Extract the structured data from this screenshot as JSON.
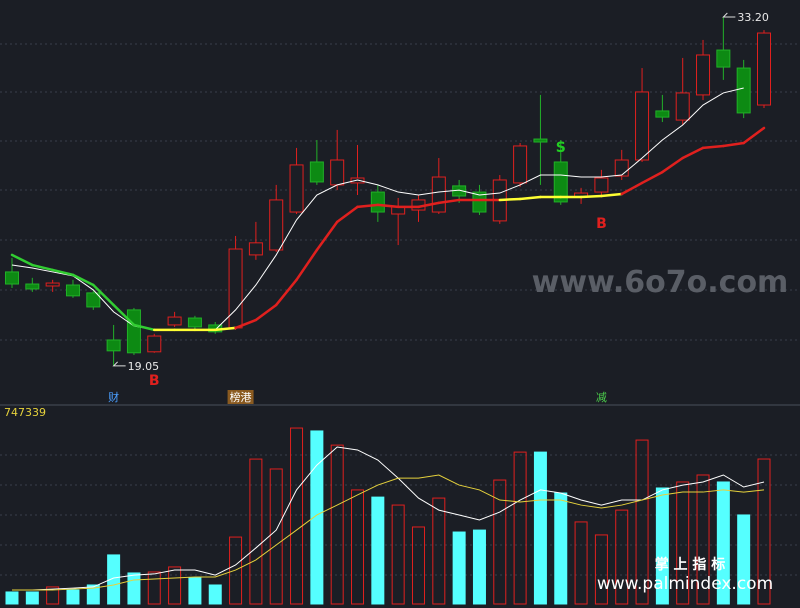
{
  "chart_data": {
    "type": "candlestick",
    "ylim": [
      17.99,
      33.89
    ],
    "up_color": "#e0201e",
    "down_color": "#0d8a13",
    "open": [
      22.86,
      22.37,
      22.29,
      22.33,
      22.01,
      20.1,
      21.32,
      19.62,
      20.71,
      20.99,
      20.71,
      20.59,
      23.55,
      23.75,
      25.29,
      27.32,
      26.39,
      26.47,
      26.1,
      25.21,
      25.37,
      25.29,
      26.35,
      26.1,
      24.93,
      26.47,
      28.25,
      27.32,
      25.9,
      26.1,
      26.75,
      27.4,
      29.39,
      29.02,
      30.04,
      31.86,
      31.13,
      29.63
    ],
    "high": [
      23.43,
      22.62,
      22.54,
      22.54,
      22.13,
      20.71,
      21.4,
      20.35,
      21.24,
      21.08,
      20.83,
      24.32,
      24.89,
      26.39,
      27.89,
      28.21,
      28.62,
      28.01,
      26.39,
      25.86,
      25.98,
      27.48,
      26.59,
      26.39,
      26.79,
      28.09,
      30.04,
      28.21,
      26.27,
      27.0,
      27.81,
      31.13,
      30.04,
      31.54,
      32.27,
      33.2,
      31.46,
      32.67
    ],
    "low": [
      22.21,
      22.05,
      22.05,
      21.81,
      21.32,
      19.05,
      19.49,
      19.58,
      20.63,
      20.51,
      20.35,
      20.51,
      23.35,
      23.67,
      25.21,
      26.39,
      26.18,
      25.98,
      24.89,
      23.95,
      24.89,
      25.21,
      25.66,
      25.17,
      24.81,
      26.31,
      26.39,
      25.58,
      25.62,
      25.94,
      26.59,
      27.32,
      28.94,
      28.82,
      29.83,
      30.65,
      29.1,
      29.51
    ],
    "close": [
      22.37,
      22.17,
      22.41,
      21.89,
      21.44,
      19.66,
      19.58,
      20.26,
      21.03,
      20.63,
      20.43,
      23.79,
      24.04,
      25.78,
      27.2,
      26.51,
      27.4,
      26.67,
      25.29,
      25.5,
      25.78,
      26.71,
      25.94,
      25.29,
      26.59,
      27.97,
      28.13,
      25.7,
      26.06,
      26.67,
      27.4,
      30.16,
      29.14,
      30.12,
      31.66,
      31.17,
      29.31,
      32.55
    ],
    "ma_lines": [
      {
        "color": "#ffffff",
        "values": [
          23.14,
          23.02,
          22.86,
          22.7,
          22.13,
          21.24,
          20.67,
          20.51,
          20.51,
          20.51,
          20.51,
          21.32,
          22.33,
          23.55,
          24.97,
          25.98,
          26.39,
          26.59,
          26.39,
          26.1,
          25.98,
          26.1,
          26.18,
          25.98,
          26.06,
          26.39,
          26.79,
          26.79,
          26.71,
          26.71,
          26.79,
          27.48,
          28.21,
          28.82,
          29.63,
          30.12,
          30.32,
          null
        ]
      },
      {
        "colors": [
          "#32cd32",
          "#32cd32",
          "#32cd32",
          "#32cd32",
          "#32cd32",
          "#32cd32",
          "#32cd32",
          "#32cd32",
          "#ffff33",
          "#ffff33",
          "#ffff33",
          "#ffff33",
          "#e0201e",
          "#e0201e",
          "#e0201e",
          "#e0201e",
          "#e0201e",
          "#e0201e",
          "#e0201e",
          "#e0201e",
          "#e0201e",
          "#e0201e",
          "#e0201e",
          "#e0201e",
          "#e0201e",
          "#ffff33",
          "#ffff33",
          "#ffff33",
          "#ffff33",
          "#ffff33",
          "#ffff33",
          "#e0201e",
          "#e0201e",
          "#e0201e",
          "#e0201e",
          "#e0201e",
          "#e0201e",
          "#e0201e"
        ],
        "values": [
          23.55,
          23.14,
          22.94,
          22.74,
          22.33,
          21.52,
          20.71,
          20.51,
          20.51,
          20.51,
          20.51,
          20.59,
          20.91,
          21.52,
          22.54,
          23.75,
          24.89,
          25.5,
          25.58,
          25.5,
          25.5,
          25.66,
          25.78,
          25.78,
          25.78,
          25.82,
          25.9,
          25.9,
          25.9,
          25.94,
          26.02,
          26.47,
          26.91,
          27.48,
          27.89,
          27.97,
          28.09,
          28.7
        ]
      }
    ],
    "extreme_labels": [
      {
        "text": "33.20",
        "value": 33.2,
        "side": "high"
      },
      {
        "text": "19.05",
        "value": 19.05,
        "side": "low"
      }
    ],
    "signal_colors": {
      "B": "#e0201e",
      "S": "#22cc22"
    },
    "signals": [
      null,
      null,
      null,
      null,
      null,
      null,
      null,
      "B",
      null,
      null,
      null,
      null,
      null,
      null,
      null,
      null,
      null,
      null,
      null,
      null,
      null,
      null,
      null,
      null,
      null,
      null,
      null,
      "S",
      null,
      "B",
      null,
      null,
      null,
      null,
      null,
      null,
      null,
      null
    ],
    "events": [
      null,
      null,
      null,
      null,
      null,
      {
        "text": "财",
        "color": "#4a9eff"
      },
      null,
      null,
      null,
      null,
      null,
      {
        "text": "榜港",
        "color": "#ffffff",
        "background": "#8a5a20"
      },
      null,
      null,
      null,
      null,
      null,
      null,
      null,
      null,
      null,
      null,
      null,
      null,
      null,
      null,
      null,
      null,
      null,
      {
        "text": "减",
        "color": "#4ccf4c"
      },
      null,
      null,
      null,
      null,
      null,
      null,
      null,
      null
    ],
    "volume": {
      "ylim": [
        0,
        1000000
      ],
      "up_color": "#e0201e",
      "down_color": "#55ffff",
      "label_color": "#e6d23c",
      "values": [
        62000,
        62000,
        88000,
        72000,
        98000,
        253000,
        160000,
        165000,
        191000,
        134000,
        98000,
        345000,
        747000,
        696000,
        907000,
        892000,
        819000,
        588000,
        551000,
        510000,
        397000,
        546000,
        371000,
        381000,
        639000,
        783000,
        783000,
        572000,
        423000,
        356000,
        484000,
        845000,
        598000,
        629000,
        665000,
        629000,
        459000,
        747339
      ],
      "ma_lines": [
        {
          "color": "#ffffff",
          "values": [
            72000,
            72000,
            77000,
            82000,
            88000,
            134000,
            149000,
            155000,
            175000,
            175000,
            149000,
            201000,
            289000,
            381000,
            588000,
            716000,
            809000,
            794000,
            742000,
            649000,
            546000,
            484000,
            459000,
            433000,
            474000,
            536000,
            588000,
            572000,
            536000,
            510000,
            536000,
            536000,
            588000,
            613000,
            629000,
            665000,
            603000,
            629000
          ]
        },
        {
          "color": "#e6d23c",
          "values": [
            72000,
            72000,
            72000,
            77000,
            82000,
            98000,
            124000,
            129000,
            134000,
            139000,
            139000,
            175000,
            227000,
            304000,
            381000,
            459000,
            510000,
            562000,
            613000,
            649000,
            649000,
            665000,
            613000,
            588000,
            536000,
            526000,
            536000,
            536000,
            510000,
            495000,
            510000,
            536000,
            562000,
            577000,
            577000,
            588000,
            577000,
            588000
          ]
        }
      ]
    }
  },
  "watermarks": {
    "site": "www.6o7o.com",
    "brand": "掌 上 指 标",
    "url": "www.palmindex.com"
  }
}
